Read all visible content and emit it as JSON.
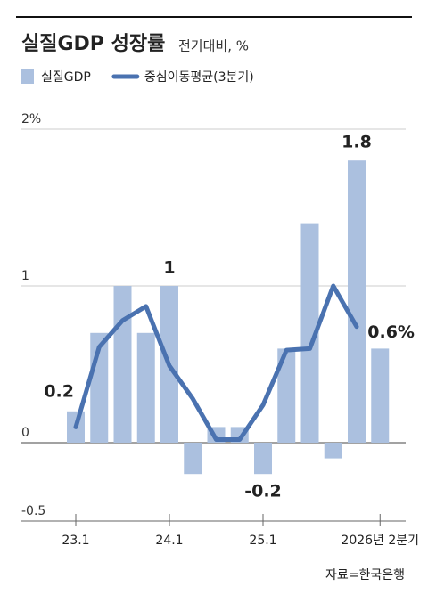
{
  "chart_data": {
    "type": "bar",
    "title": "실질GDP 성장률",
    "subtitle": "전기대비, %",
    "source": "자료=한국은행",
    "categories": [
      "23.1",
      null,
      null,
      null,
      "24.1",
      null,
      null,
      null,
      "25.1",
      null,
      null,
      null,
      null,
      "2026년 2분기"
    ],
    "series": [
      {
        "name": "실질GDP",
        "type": "bar",
        "color": "#abc0df",
        "values": [
          0.2,
          0.7,
          1.0,
          0.7,
          1.0,
          -0.2,
          0.1,
          0.1,
          -0.2,
          0.6,
          1.4,
          -0.1,
          1.8,
          0.6
        ],
        "value_labels": [
          "0.2",
          null,
          null,
          null,
          "1",
          null,
          null,
          null,
          "-0.2",
          null,
          null,
          null,
          "1.8",
          "0.6%"
        ]
      },
      {
        "name": "중심이동평균(3분기)",
        "type": "line",
        "color": "#4a72b0",
        "values": [
          0.1,
          0.61,
          0.78,
          0.87,
          0.49,
          0.28,
          0.02,
          0.02,
          0.24,
          0.59,
          0.6,
          1.0,
          0.74,
          null
        ]
      }
    ],
    "ylim": [
      -0.5,
      2
    ],
    "yticks": [
      {
        "value": 2,
        "label": "2%"
      },
      1,
      0,
      -0.5
    ],
    "grid": true
  }
}
